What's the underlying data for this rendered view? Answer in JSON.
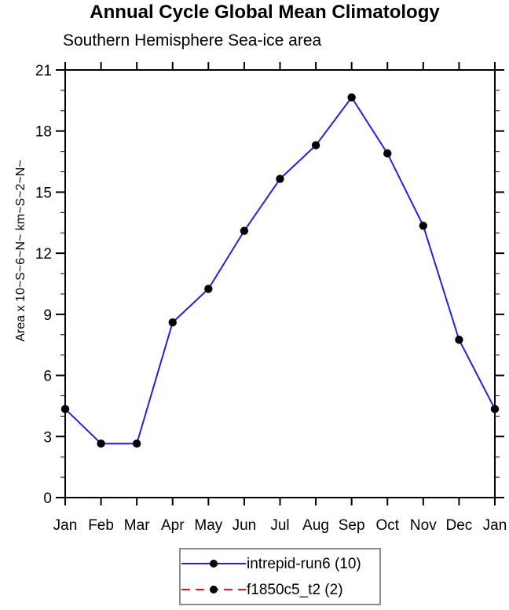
{
  "chart_data": {
    "type": "line",
    "title": "Annual Cycle Global Mean Climatology",
    "subtitle": "Southern Hemisphere Sea-ice area",
    "ylabel": "Area x 10~S~6~N~ km~S~2~N~",
    "xlabel": "",
    "categories": [
      "Jan",
      "Feb",
      "Mar",
      "Apr",
      "May",
      "Jun",
      "Jul",
      "Aug",
      "Sep",
      "Oct",
      "Nov",
      "Dec",
      "Jan"
    ],
    "series": [
      {
        "name": "intrepid-run6 (10)",
        "color": "#2222dd",
        "style": "solid",
        "marker": "filled-circle",
        "values": [
          4.35,
          2.65,
          2.65,
          8.6,
          10.25,
          13.1,
          15.65,
          17.3,
          19.65,
          16.9,
          13.35,
          7.75,
          4.35
        ]
      },
      {
        "name": "f1850c5_t2 (2)",
        "color": "#ee1111",
        "style": "dashed",
        "marker": "filled-circle",
        "values": []
      }
    ],
    "ylim": [
      0,
      21
    ],
    "y_major_ticks": [
      0,
      3,
      6,
      9,
      12,
      15,
      18,
      21
    ],
    "y_minor_step": 1,
    "marker_color": "#000000",
    "grid": false,
    "legend_position": "bottom-center",
    "axis_color": "#000000"
  }
}
